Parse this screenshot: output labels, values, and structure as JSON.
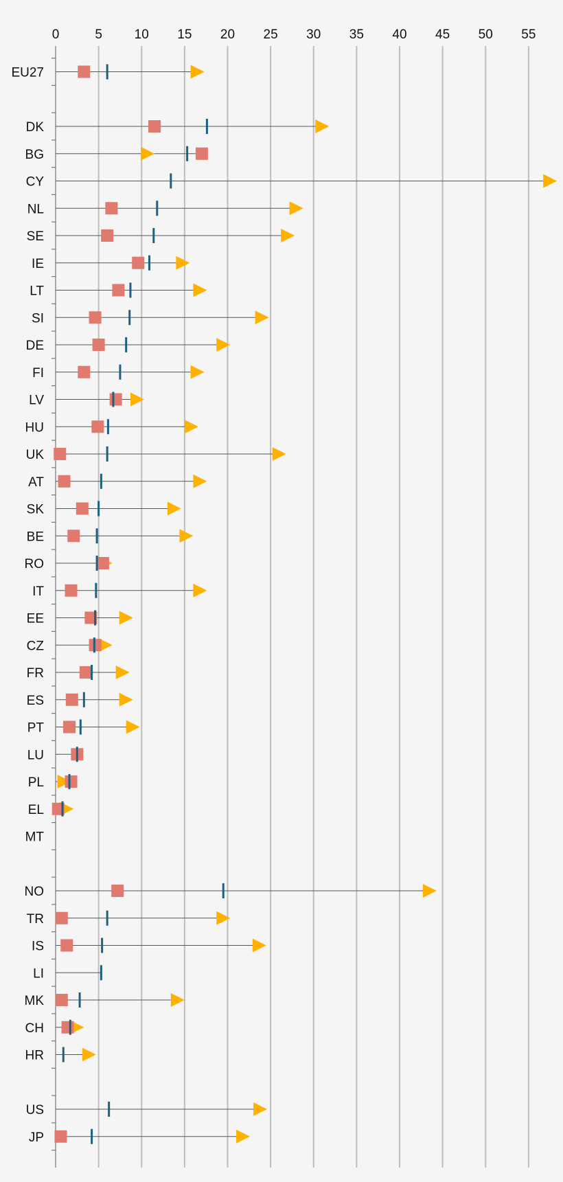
{
  "chart_data": {
    "type": "scatter",
    "title": "",
    "xlabel": "",
    "ylabel": "",
    "xlim": [
      0,
      58
    ],
    "x_ticks": [
      "0",
      "5",
      "10",
      "15",
      "20",
      "25",
      "30",
      "35",
      "40",
      "45",
      "50",
      "55"
    ],
    "grid": "vertical",
    "legend": "none",
    "colors": {
      "square": "#e07a6e",
      "bar": "#1f5f7f",
      "triangle": "#ffb100",
      "line": "#555555",
      "grid": "#bdbdbd"
    },
    "rows": [
      {
        "label": "EU27",
        "square": 3.3,
        "bar": 6.0,
        "triangle": 16.5
      },
      {
        "label": ""
      },
      {
        "label": "DK",
        "square": 11.5,
        "bar": 17.6,
        "triangle": 31.0
      },
      {
        "label": "BG",
        "square": 17.0,
        "bar": 15.3,
        "triangle": 10.7
      },
      {
        "label": "CY",
        "bar": 13.4,
        "triangle": 57.5
      },
      {
        "label": "NL",
        "square": 6.5,
        "bar": 11.8,
        "triangle": 28.0
      },
      {
        "label": "SE",
        "square": 6.0,
        "bar": 11.4,
        "triangle": 27.0
      },
      {
        "label": "IE",
        "square": 9.6,
        "bar": 10.9,
        "triangle": 14.8
      },
      {
        "label": "LT",
        "square": 7.3,
        "bar": 8.7,
        "triangle": 16.8
      },
      {
        "label": "SI",
        "square": 4.6,
        "bar": 8.6,
        "triangle": 24.0
      },
      {
        "label": "DE",
        "square": 5.0,
        "bar": 8.2,
        "triangle": 19.5
      },
      {
        "label": "FI",
        "square": 3.3,
        "bar": 7.5,
        "triangle": 16.5
      },
      {
        "label": "LV",
        "square": 7.0,
        "bar": 6.7,
        "triangle": 9.5
      },
      {
        "label": "HU",
        "square": 4.9,
        "bar": 6.1,
        "triangle": 15.8
      },
      {
        "label": "UK",
        "square": 0.5,
        "bar": 6.0,
        "triangle": 26.0
      },
      {
        "label": "AT",
        "square": 1.0,
        "bar": 5.3,
        "triangle": 16.8
      },
      {
        "label": "SK",
        "square": 3.1,
        "bar": 5.0,
        "triangle": 13.8
      },
      {
        "label": "BE",
        "square": 2.1,
        "bar": 4.8,
        "triangle": 15.2
      },
      {
        "label": "RO",
        "square": 5.5,
        "bar": 4.8,
        "triangle": 5.8
      },
      {
        "label": "IT",
        "square": 1.8,
        "bar": 4.7,
        "triangle": 16.8
      },
      {
        "label": "EE",
        "square": 4.1,
        "bar": 4.6,
        "triangle": 8.2
      },
      {
        "label": "CZ",
        "square": 4.6,
        "bar": 4.5,
        "triangle": 5.8
      },
      {
        "label": "FR",
        "square": 3.5,
        "bar": 4.2,
        "triangle": 7.8
      },
      {
        "label": "ES",
        "square": 1.9,
        "bar": 3.3,
        "triangle": 8.2
      },
      {
        "label": "PT",
        "square": 1.6,
        "bar": 2.9,
        "triangle": 9.0
      },
      {
        "label": "LU",
        "square": 2.5,
        "bar": 2.5
      },
      {
        "label": "PL",
        "square": 1.8,
        "bar": 1.6,
        "triangle": 1.0
      },
      {
        "label": "EL",
        "square": 0.3,
        "bar": 0.8,
        "triangle": 1.3
      },
      {
        "label": "MT"
      },
      {
        "label": ""
      },
      {
        "label": "NO",
        "square": 7.2,
        "bar": 19.5,
        "triangle": 43.5
      },
      {
        "label": "TR",
        "square": 0.7,
        "bar": 6.0,
        "triangle": 19.5
      },
      {
        "label": "IS",
        "square": 1.3,
        "bar": 5.4,
        "triangle": 23.7
      },
      {
        "label": "LI",
        "bar": 5.3
      },
      {
        "label": "MK",
        "square": 0.7,
        "bar": 2.8,
        "triangle": 14.2
      },
      {
        "label": "CH",
        "square": 1.4,
        "bar": 1.7,
        "triangle": 2.5
      },
      {
        "label": "HR",
        "bar": 0.9,
        "triangle": 3.9
      },
      {
        "label": ""
      },
      {
        "label": "US",
        "bar": 6.2,
        "triangle": 23.8
      },
      {
        "label": "JP",
        "square": 0.6,
        "bar": 4.2,
        "triangle": 21.8
      }
    ]
  }
}
